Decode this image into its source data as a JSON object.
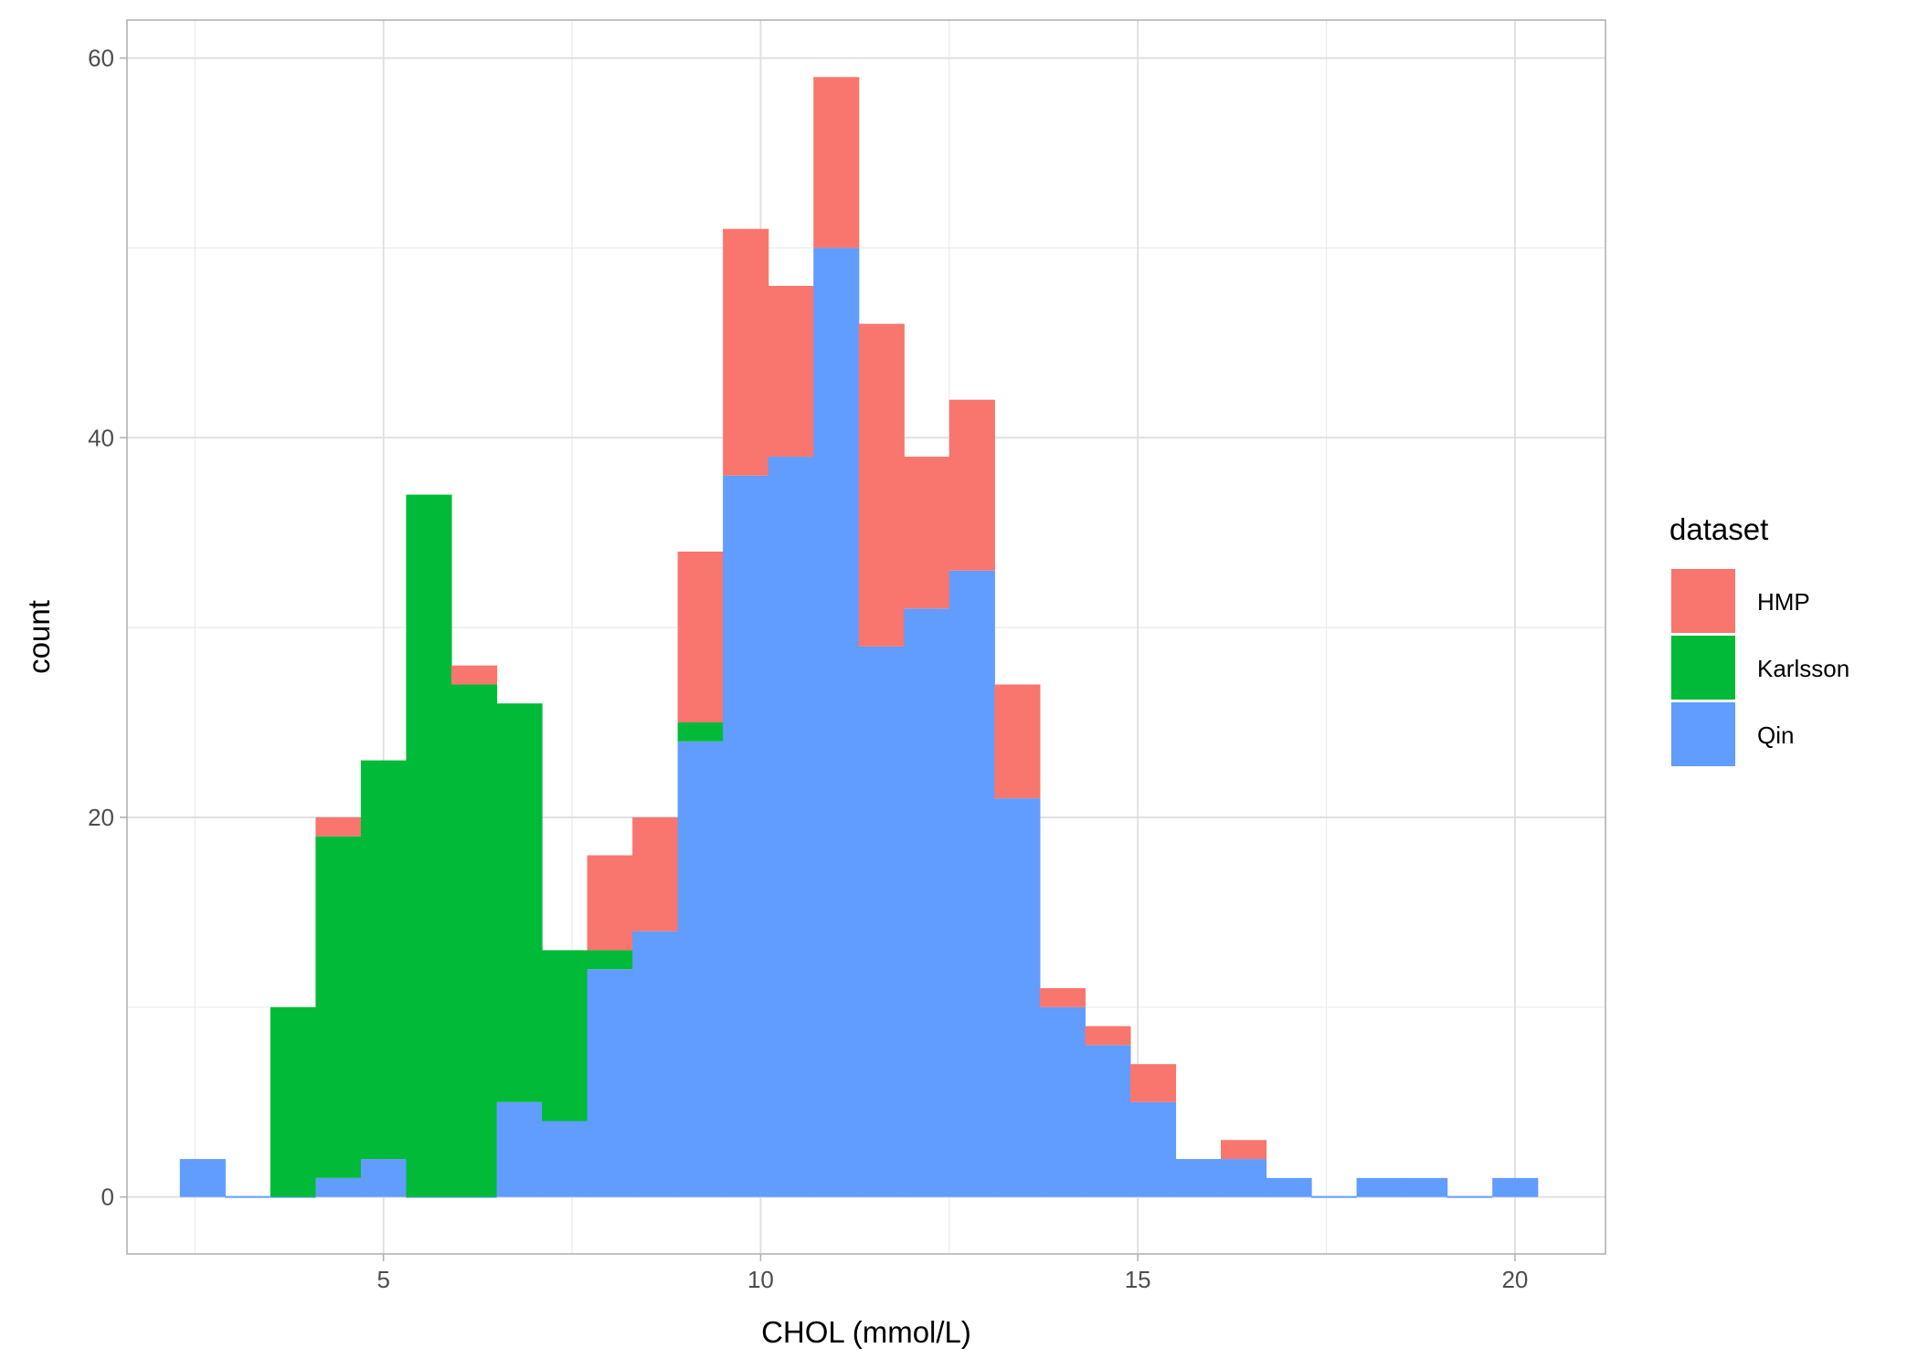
{
  "chart_data": {
    "type": "histogram",
    "position": "stacked",
    "xlabel": "CHOL (mmol/L)",
    "ylabel": "count",
    "xlim": [
      1.6,
      21.2
    ],
    "ylim": [
      -3,
      62
    ],
    "x_ticks": [
      5,
      10,
      15,
      20
    ],
    "y_ticks": [
      0,
      20,
      40,
      60
    ],
    "x_tick_labels": [
      "5",
      "10",
      "15",
      "20"
    ],
    "y_tick_labels": [
      "0",
      "20",
      "40",
      "60"
    ],
    "grid": true,
    "legend_position": "right",
    "legend": {
      "title": "dataset",
      "items": [
        {
          "name": "HMP",
          "color": "#F8766D"
        },
        {
          "name": "Karlsson",
          "color": "#00BA38"
        },
        {
          "name": "Qin",
          "color": "#619CFF"
        }
      ]
    },
    "bin_width": 0.6,
    "bin_starts": [
      2.3,
      2.9,
      3.5,
      4.1,
      4.7,
      5.3,
      5.9,
      6.5,
      7.1,
      7.7,
      8.3,
      8.9,
      9.5,
      10.1,
      10.7,
      11.3,
      11.9,
      12.5,
      13.1,
      13.7,
      14.3,
      14.9,
      15.5,
      16.1,
      16.7,
      17.3,
      17.9,
      18.5,
      19.1,
      19.7
    ],
    "series": [
      {
        "name": "Qin",
        "color": "#619CFF",
        "values": [
          2,
          0,
          0,
          1,
          2,
          0,
          0,
          5,
          4,
          12,
          14,
          24,
          38,
          39,
          50,
          29,
          31,
          33,
          21,
          10,
          8,
          5,
          2,
          2,
          1,
          0,
          1,
          1,
          0,
          1
        ]
      },
      {
        "name": "Karlsson",
        "color": "#00BA38",
        "values": [
          0,
          0,
          10,
          18,
          21,
          37,
          27,
          21,
          9,
          1,
          0,
          1,
          0,
          0,
          0,
          0,
          0,
          0,
          0,
          0,
          0,
          0,
          0,
          0,
          0,
          0,
          0,
          0,
          0,
          0
        ]
      },
      {
        "name": "HMP",
        "color": "#F8766D",
        "values": [
          0,
          0,
          0,
          1,
          0,
          0,
          1,
          0,
          0,
          5,
          6,
          9,
          13,
          9,
          9,
          17,
          8,
          9,
          6,
          1,
          1,
          2,
          0,
          1,
          0,
          0,
          0,
          0,
          0,
          0
        ]
      }
    ]
  }
}
